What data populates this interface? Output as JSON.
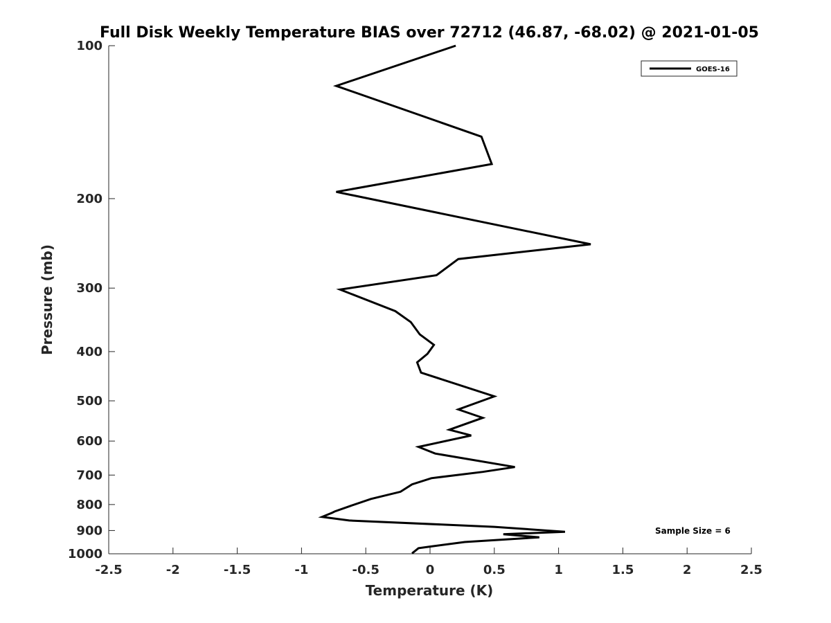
{
  "chart_data": {
    "type": "line",
    "title": "Full Disk Weekly Temperature BIAS over 72712 (46.87, -68.02) @ 2021-01-05",
    "xlabel": "Temperature (K)",
    "ylabel": "Pressure (mb)",
    "xlim": [
      -2.5,
      2.5
    ],
    "ylim": [
      100,
      1000
    ],
    "y_scale": "log",
    "y_reversed": true,
    "grid": false,
    "legend_position": "top-right",
    "x_ticks": [
      "-2.5",
      "-2",
      "-1.5",
      "-1",
      "-0.5",
      "0",
      "0.5",
      "1",
      "1.5",
      "2",
      "2.5"
    ],
    "x_tick_values": [
      -2.5,
      -2,
      -1.5,
      -1,
      -0.5,
      0,
      0.5,
      1,
      1.5,
      2,
      2.5
    ],
    "y_ticks": [
      "100",
      "200",
      "300",
      "400",
      "500",
      "600",
      "700",
      "800",
      "900",
      "1000"
    ],
    "y_tick_values": [
      100,
      200,
      300,
      400,
      500,
      600,
      700,
      800,
      900,
      1000
    ],
    "series": [
      {
        "name": "GOES-16",
        "color": "#000000",
        "points": [
          [
            0.2,
            100
          ],
          [
            -0.73,
            120
          ],
          [
            0.4,
            151
          ],
          [
            0.48,
            171
          ],
          [
            -0.73,
            194
          ],
          [
            1.25,
            246
          ],
          [
            0.22,
            263
          ],
          [
            0.05,
            283
          ],
          [
            -0.7,
            302
          ],
          [
            -0.27,
            333
          ],
          [
            -0.15,
            350
          ],
          [
            -0.08,
            370
          ],
          [
            0.03,
            388
          ],
          [
            -0.02,
            404
          ],
          [
            -0.1,
            420
          ],
          [
            -0.07,
            440
          ],
          [
            0.5,
            490
          ],
          [
            0.22,
            520
          ],
          [
            0.41,
            540
          ],
          [
            0.15,
            570
          ],
          [
            0.32,
            585
          ],
          [
            -0.09,
            616
          ],
          [
            0.04,
            635
          ],
          [
            0.66,
            675
          ],
          [
            0.41,
            690
          ],
          [
            0.01,
            710
          ],
          [
            -0.14,
            730
          ],
          [
            -0.23,
            755
          ],
          [
            -0.46,
            780
          ],
          [
            -0.62,
            805
          ],
          [
            -0.74,
            825
          ],
          [
            -0.76,
            830
          ],
          [
            -0.84,
            846
          ],
          [
            -0.63,
            860
          ],
          [
            0.5,
            885
          ],
          [
            1.05,
            905
          ],
          [
            0.57,
            915
          ],
          [
            0.85,
            928
          ],
          [
            0.27,
            948
          ],
          [
            0.0,
            968
          ],
          [
            -0.09,
            975
          ],
          [
            -0.14,
            998
          ]
        ]
      }
    ],
    "annotation": "Sample Size = 6"
  }
}
